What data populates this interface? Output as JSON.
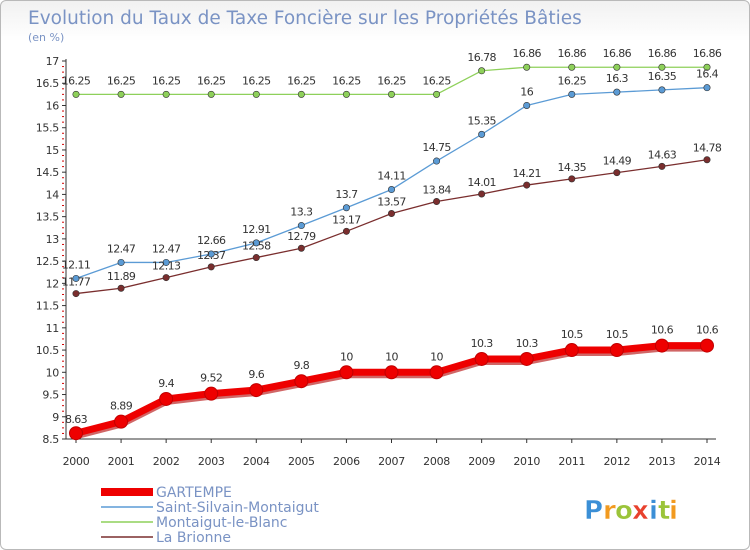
{
  "chart_data": {
    "type": "line",
    "title": "Evolution du Taux de Taxe Foncière sur les Propriétés Bâties",
    "ylabel": "(en %)",
    "xlabel": "",
    "ylim": [
      8.5,
      17
    ],
    "yticks": [
      "8.5",
      "9",
      "9.5",
      "10",
      "10.5",
      "11",
      "11.5",
      "12",
      "12.5",
      "13",
      "13.5",
      "14",
      "14.5",
      "15",
      "15.5",
      "16",
      "16.5",
      "17"
    ],
    "x": [
      "2000",
      "2001",
      "2002",
      "2003",
      "2004",
      "2005",
      "2006",
      "2007",
      "2008",
      "2009",
      "2010",
      "2011",
      "2012",
      "2013",
      "2014"
    ],
    "grid": false,
    "legend_position": "bottom-left",
    "series": [
      {
        "name": "GARTEMPE",
        "color": "#ee0000",
        "values": [
          8.63,
          8.89,
          9.4,
          9.52,
          9.6,
          9.8,
          10,
          10,
          10,
          10.3,
          10.3,
          10.5,
          10.5,
          10.6,
          10.6
        ],
        "labels": [
          "8.63",
          "8.89",
          "9.4",
          "9.52",
          "9.6",
          "9.8",
          "10",
          "10",
          "10",
          "10.3",
          "10.3",
          "10.5",
          "10.5",
          "10.6",
          "10.6"
        ]
      },
      {
        "name": "Saint-Silvain-Montaigut",
        "color": "#5b9bd5",
        "values": [
          12.11,
          12.47,
          12.47,
          12.66,
          12.91,
          13.3,
          13.7,
          14.11,
          14.75,
          15.35,
          16,
          16.25,
          16.3,
          16.35,
          16.4
        ],
        "labels": [
          "12.11",
          "12.47",
          "12.47",
          "12.66",
          "12.91",
          "13.3",
          "13.7",
          "14.11",
          "14.75",
          "15.35",
          "16",
          "16.25",
          "16.3",
          "16.35",
          "16.4"
        ]
      },
      {
        "name": "Montaigut-le-Blanc",
        "color": "#8ed05a",
        "values": [
          16.25,
          16.25,
          16.25,
          16.25,
          16.25,
          16.25,
          16.25,
          16.25,
          16.25,
          16.78,
          16.86,
          16.86,
          16.86,
          16.86,
          16.86
        ],
        "labels": [
          "16.25",
          "16.25",
          "16.25",
          "16.25",
          "16.25",
          "16.25",
          "16.25",
          "16.25",
          "16.25",
          "16.78",
          "16.86",
          "16.86",
          "16.86",
          "16.86",
          "16.86"
        ]
      },
      {
        "name": "La Brionne",
        "color": "#7a2e2e",
        "values": [
          11.77,
          11.89,
          12.13,
          12.37,
          12.58,
          12.79,
          13.17,
          13.57,
          13.84,
          14.01,
          14.21,
          14.35,
          14.49,
          14.63,
          14.78
        ],
        "labels": [
          "11.77",
          "11.89",
          "12.13",
          "12.37",
          "12.58",
          "12.79",
          "13.17",
          "13.57",
          "13.84",
          "14.01",
          "14.21",
          "14.35",
          "14.49",
          "14.63",
          "14.78"
        ]
      }
    ]
  },
  "logo": {
    "letters": [
      "P",
      "r",
      "o",
      "x",
      "i",
      "t",
      "i"
    ],
    "colors": [
      "#3b8fd6",
      "#f29a1f",
      "#9bc43a",
      "#e8412d",
      "#3b8fd6",
      "#9bc43a",
      "#f29a1f"
    ]
  }
}
